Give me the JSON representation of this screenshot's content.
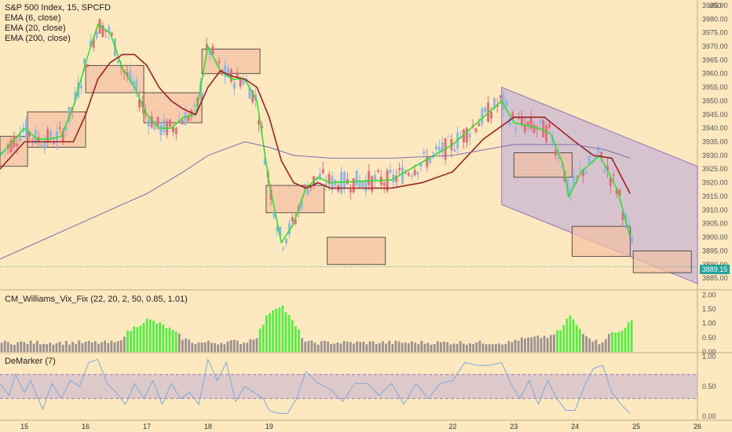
{
  "chart": {
    "title": "S&P 500 Index, 15, SPCFD",
    "indicators": [
      "EMA (6, close)",
      "EMA (20, close)",
      "EMA (200, close)"
    ],
    "unit": "USD",
    "last_price_label": "3889.15",
    "pane2_label": "CM_Williams_Vix_Fix (22, 20, 2, 50, 0.85, 1.01)",
    "pane3_label": "DeMarker (7)"
  },
  "colors": {
    "background": "#fde8c0",
    "candle_up": "#8fb8e0",
    "candle_down": "#e0707a",
    "ema6": "#33dd33",
    "ema20": "#9b2222",
    "ema200": "#7a6fa8",
    "bar_gray": "#9c9090",
    "bar_green": "#55ee44",
    "box_fill": "#f2c0a4",
    "channel_fill": "#b8a4d8",
    "price_tag": "#22a39a"
  },
  "chart_data": [
    {
      "type": "line",
      "title": "S&P 500 Index, 15, SPCFD",
      "x_axis": {
        "ticks": [
          "15",
          "16",
          "17",
          "18",
          "19",
          "22",
          "23",
          "24",
          "25",
          "26"
        ]
      },
      "y_axis": {
        "range": [
          3881,
          3987
        ],
        "ticks": [
          "3985.00",
          "3980.00",
          "3975.00",
          "3970.00",
          "3965.00",
          "3960.00",
          "3955.00",
          "3950.00",
          "3945.00",
          "3940.00",
          "3935.00",
          "3930.00",
          "3925.00",
          "3920.00",
          "3915.00",
          "3910.00",
          "3905.00",
          "3900.00",
          "3895.00",
          "3890.00",
          "3885.00"
        ]
      },
      "x_range": [
        14.6,
        26
      ],
      "series": [
        {
          "name": "EMA (6, close)",
          "color": "#33dd33",
          "points": [
            [
              14.6,
              3930
            ],
            [
              14.8,
              3935
            ],
            [
              15.0,
              3940
            ],
            [
              15.2,
              3936
            ],
            [
              15.4,
              3936
            ],
            [
              15.6,
              3937
            ],
            [
              15.8,
              3948
            ],
            [
              16.0,
              3964
            ],
            [
              16.2,
              3978
            ],
            [
              16.4,
              3975
            ],
            [
              16.6,
              3962
            ],
            [
              16.8,
              3955
            ],
            [
              17.0,
              3945
            ],
            [
              17.2,
              3940
            ],
            [
              17.4,
              3940
            ],
            [
              17.6,
              3944
            ],
            [
              17.8,
              3945
            ],
            [
              18.0,
              3970
            ],
            [
              18.2,
              3961
            ],
            [
              18.4,
              3958
            ],
            [
              18.6,
              3958
            ],
            [
              18.8,
              3950
            ],
            [
              19.0,
              3920
            ],
            [
              19.2,
              3898
            ],
            [
              19.4,
              3905
            ],
            [
              19.6,
              3918
            ],
            [
              19.8,
              3922
            ],
            [
              20.0,
              3920
            ],
            [
              21.0,
              3921
            ],
            [
              22.0,
              3934
            ],
            [
              22.4,
              3942
            ],
            [
              22.8,
              3950
            ],
            [
              23.0,
              3942
            ],
            [
              23.4,
              3940
            ],
            [
              23.6,
              3938
            ],
            [
              23.8,
              3927
            ],
            [
              23.9,
              3915
            ],
            [
              24.1,
              3924
            ],
            [
              24.4,
              3930
            ],
            [
              24.7,
              3917
            ],
            [
              24.9,
              3900
            ]
          ]
        },
        {
          "name": "EMA (20, close)",
          "color": "#9b2222",
          "points": [
            [
              14.6,
              3925
            ],
            [
              15.0,
              3935
            ],
            [
              15.4,
              3935
            ],
            [
              15.8,
              3935
            ],
            [
              16.0,
              3945
            ],
            [
              16.2,
              3958
            ],
            [
              16.4,
              3964
            ],
            [
              16.6,
              3967
            ],
            [
              16.8,
              3967
            ],
            [
              17.0,
              3963
            ],
            [
              17.2,
              3955
            ],
            [
              17.4,
              3950
            ],
            [
              17.6,
              3947
            ],
            [
              17.8,
              3945
            ],
            [
              18.0,
              3955
            ],
            [
              18.2,
              3961
            ],
            [
              18.4,
              3959
            ],
            [
              18.6,
              3958
            ],
            [
              18.8,
              3955
            ],
            [
              19.0,
              3944
            ],
            [
              19.2,
              3928
            ],
            [
              19.4,
              3920
            ],
            [
              19.6,
              3918
            ],
            [
              19.8,
              3920
            ],
            [
              20.0,
              3918
            ],
            [
              21.0,
              3918
            ],
            [
              21.5,
              3920
            ],
            [
              22.0,
              3924
            ],
            [
              22.5,
              3936
            ],
            [
              23.0,
              3944
            ],
            [
              23.5,
              3944
            ],
            [
              24.0,
              3935
            ],
            [
              24.3,
              3930
            ],
            [
              24.6,
              3929
            ],
            [
              24.9,
              3916
            ]
          ]
        },
        {
          "name": "EMA (200, close)",
          "color": "#7a6fa8",
          "points": [
            [
              14.6,
              3892
            ],
            [
              15.2,
              3898
            ],
            [
              16.0,
              3906
            ],
            [
              17.0,
              3916
            ],
            [
              17.6,
              3924
            ],
            [
              18.0,
              3930
            ],
            [
              18.6,
              3935
            ],
            [
              19.0,
              3933
            ],
            [
              19.4,
              3930
            ],
            [
              20.0,
              3929
            ],
            [
              21.0,
              3929
            ],
            [
              22.0,
              3930
            ],
            [
              22.5,
              3932
            ],
            [
              23.0,
              3934
            ],
            [
              23.5,
              3934
            ],
            [
              24.0,
              3934
            ],
            [
              24.5,
              3932
            ],
            [
              24.9,
              3929
            ]
          ]
        }
      ],
      "annotations": {
        "boxes": [
          [
            14.6,
            15.05,
            3926,
            3937
          ],
          [
            15.05,
            16.0,
            3933,
            3946
          ],
          [
            16.0,
            16.95,
            3953,
            3963
          ],
          [
            16.95,
            17.9,
            3942,
            3953
          ],
          [
            17.9,
            18.85,
            3960,
            3969
          ],
          [
            18.95,
            19.9,
            3909,
            3919
          ],
          [
            19.95,
            20.9,
            3890,
            3900
          ],
          [
            23.0,
            23.95,
            3922,
            3931
          ],
          [
            23.95,
            24.9,
            3893,
            3904
          ],
          [
            24.95,
            25.9,
            3887,
            3895
          ]
        ],
        "channel": {
          "start": [
            22.8,
            3955
          ],
          "end": [
            26,
            3926
          ],
          "lower_start": [
            22.8,
            3912
          ],
          "lower_end": [
            26,
            3883
          ]
        }
      },
      "last_price": 3889.15
    },
    {
      "type": "bar",
      "title": "CM_Williams_Vix_Fix (22, 20, 2, 50, 0.85, 1.01)",
      "y_axis": {
        "range": [
          0,
          2.15
        ],
        "ticks": [
          "2.00",
          "1.50",
          "1.00",
          "0.50",
          "0.00"
        ]
      },
      "x_range": [
        14.6,
        26
      ],
      "values": [
        0.15,
        0.15,
        0.15,
        0.15,
        0.15,
        0.15,
        0.15,
        0.15,
        0.15,
        0.15,
        0.15,
        0.15,
        0.15,
        0.15,
        0.15,
        0.15,
        0.15,
        0.15,
        0.15,
        0.15,
        0.15,
        0.15,
        0.15,
        0.15,
        0.15,
        0.15,
        0.15,
        0.15,
        0.15,
        0.15,
        0.15,
        0.15,
        0.15,
        0.15,
        0.15,
        0.15,
        0.15,
        0.15,
        0.15,
        0.15,
        0.15,
        0.15,
        0.15,
        0.15,
        0.15,
        0.15,
        0.15,
        0.15,
        0.15,
        0.15,
        0.15,
        0.15,
        0.15,
        0.15,
        0.15,
        0.15,
        0.15,
        0.15,
        0.15,
        0.15,
        0.15,
        0.15,
        0.15,
        0.15,
        0.15,
        0.15,
        0.15,
        0.15,
        0.15,
        0.15,
        0.15,
        0.15,
        0.15,
        0.15,
        0.15,
        0.15,
        0.15,
        0.15,
        0.15,
        0.15,
        0.15,
        0.15,
        0.15,
        0.15,
        0.15,
        0.15,
        0.15,
        0.15,
        0.15,
        0.15,
        0.15,
        0.15,
        0.15,
        0.15,
        0.15,
        0.15,
        0.15,
        0.15,
        0.15,
        0.15,
        0.15,
        0.15,
        0.15,
        0.15,
        0.15,
        0.15,
        0.15,
        0.15,
        0.15,
        0.15,
        0.15,
        0.15,
        0.15,
        0.15,
        0.15,
        0.15,
        0.15,
        0.15,
        0.15,
        0.15,
        0.15,
        0.15,
        0.15,
        0.15,
        0.15,
        0.15,
        0.15,
        0.15,
        0.15,
        0.15,
        0.15,
        0.15,
        0.15,
        0.15,
        0.15,
        0.15,
        0.15,
        0.15,
        0.15,
        0.15,
        0.15,
        0.15,
        0.15,
        0.15,
        0.15,
        0.15,
        0.15,
        0.15,
        0.15,
        0.15,
        0.15,
        0.15,
        0.15,
        0.15,
        0.15,
        0.15,
        0.15,
        0.15,
        0.15,
        0.15,
        0.15,
        0.15,
        0.15,
        0.15,
        0.15,
        0.15,
        0.15,
        0.15,
        0.15,
        0.15,
        0.15,
        0.15,
        0.15,
        0.15,
        0.15,
        0.15,
        0.15,
        0.15,
        0.15,
        0.15,
        0.15,
        0.15,
        0.15,
        0.15,
        0.15,
        0.15,
        0.15,
        0.15,
        0.15,
        0.15,
        0.15,
        0.15,
        0.15,
        0.15
      ],
      "green_count": 22
    },
    {
      "type": "line",
      "title": "DeMarker (7)",
      "y_axis": {
        "range": [
          -0.05,
          1.05
        ],
        "ticks": [
          "1.00",
          "0.50",
          "0.00"
        ]
      },
      "x_range": [
        14.6,
        26
      ],
      "band": [
        0.3,
        0.7
      ],
      "color": "#7fa9d8",
      "points": [
        [
          14.6,
          0.55
        ],
        [
          14.75,
          0.35
        ],
        [
          14.85,
          0.7
        ],
        [
          15.0,
          0.4
        ],
        [
          15.1,
          0.6
        ],
        [
          15.2,
          0.35
        ],
        [
          15.3,
          0.12
        ],
        [
          15.45,
          0.55
        ],
        [
          15.6,
          0.3
        ],
        [
          15.75,
          0.6
        ],
        [
          15.9,
          0.5
        ],
        [
          16.05,
          0.9
        ],
        [
          16.2,
          0.95
        ],
        [
          16.35,
          0.55
        ],
        [
          16.5,
          0.4
        ],
        [
          16.65,
          0.2
        ],
        [
          16.8,
          0.55
        ],
        [
          16.95,
          0.3
        ],
        [
          17.1,
          0.6
        ],
        [
          17.25,
          0.2
        ],
        [
          17.4,
          0.55
        ],
        [
          17.55,
          0.3
        ],
        [
          17.7,
          0.4
        ],
        [
          17.85,
          0.2
        ],
        [
          18.0,
          0.95
        ],
        [
          18.15,
          0.6
        ],
        [
          18.3,
          0.9
        ],
        [
          18.45,
          0.25
        ],
        [
          18.6,
          0.5
        ],
        [
          18.75,
          0.4
        ],
        [
          18.9,
          0.3
        ],
        [
          19.0,
          0.1
        ],
        [
          19.15,
          0.05
        ],
        [
          19.3,
          0.05
        ],
        [
          19.45,
          0.3
        ],
        [
          19.6,
          0.75
        ],
        [
          19.8,
          0.55
        ],
        [
          20.0,
          0.45
        ],
        [
          20.2,
          0.25
        ],
        [
          20.4,
          0.55
        ],
        [
          20.6,
          0.55
        ],
        [
          20.8,
          0.35
        ],
        [
          21.0,
          0.55
        ],
        [
          21.2,
          0.2
        ],
        [
          21.4,
          0.55
        ],
        [
          21.6,
          0.3
        ],
        [
          21.8,
          0.55
        ],
        [
          22.0,
          0.6
        ],
        [
          22.2,
          0.9
        ],
        [
          22.4,
          0.85
        ],
        [
          22.6,
          0.85
        ],
        [
          22.8,
          0.9
        ],
        [
          22.95,
          0.55
        ],
        [
          23.1,
          0.3
        ],
        [
          23.25,
          0.6
        ],
        [
          23.4,
          0.2
        ],
        [
          23.55,
          0.6
        ],
        [
          23.7,
          0.3
        ],
        [
          23.85,
          0.1
        ],
        [
          24.0,
          0.1
        ],
        [
          24.15,
          0.5
        ],
        [
          24.3,
          0.8
        ],
        [
          24.45,
          0.85
        ],
        [
          24.6,
          0.4
        ],
        [
          24.75,
          0.2
        ],
        [
          24.9,
          0.05
        ]
      ]
    }
  ]
}
